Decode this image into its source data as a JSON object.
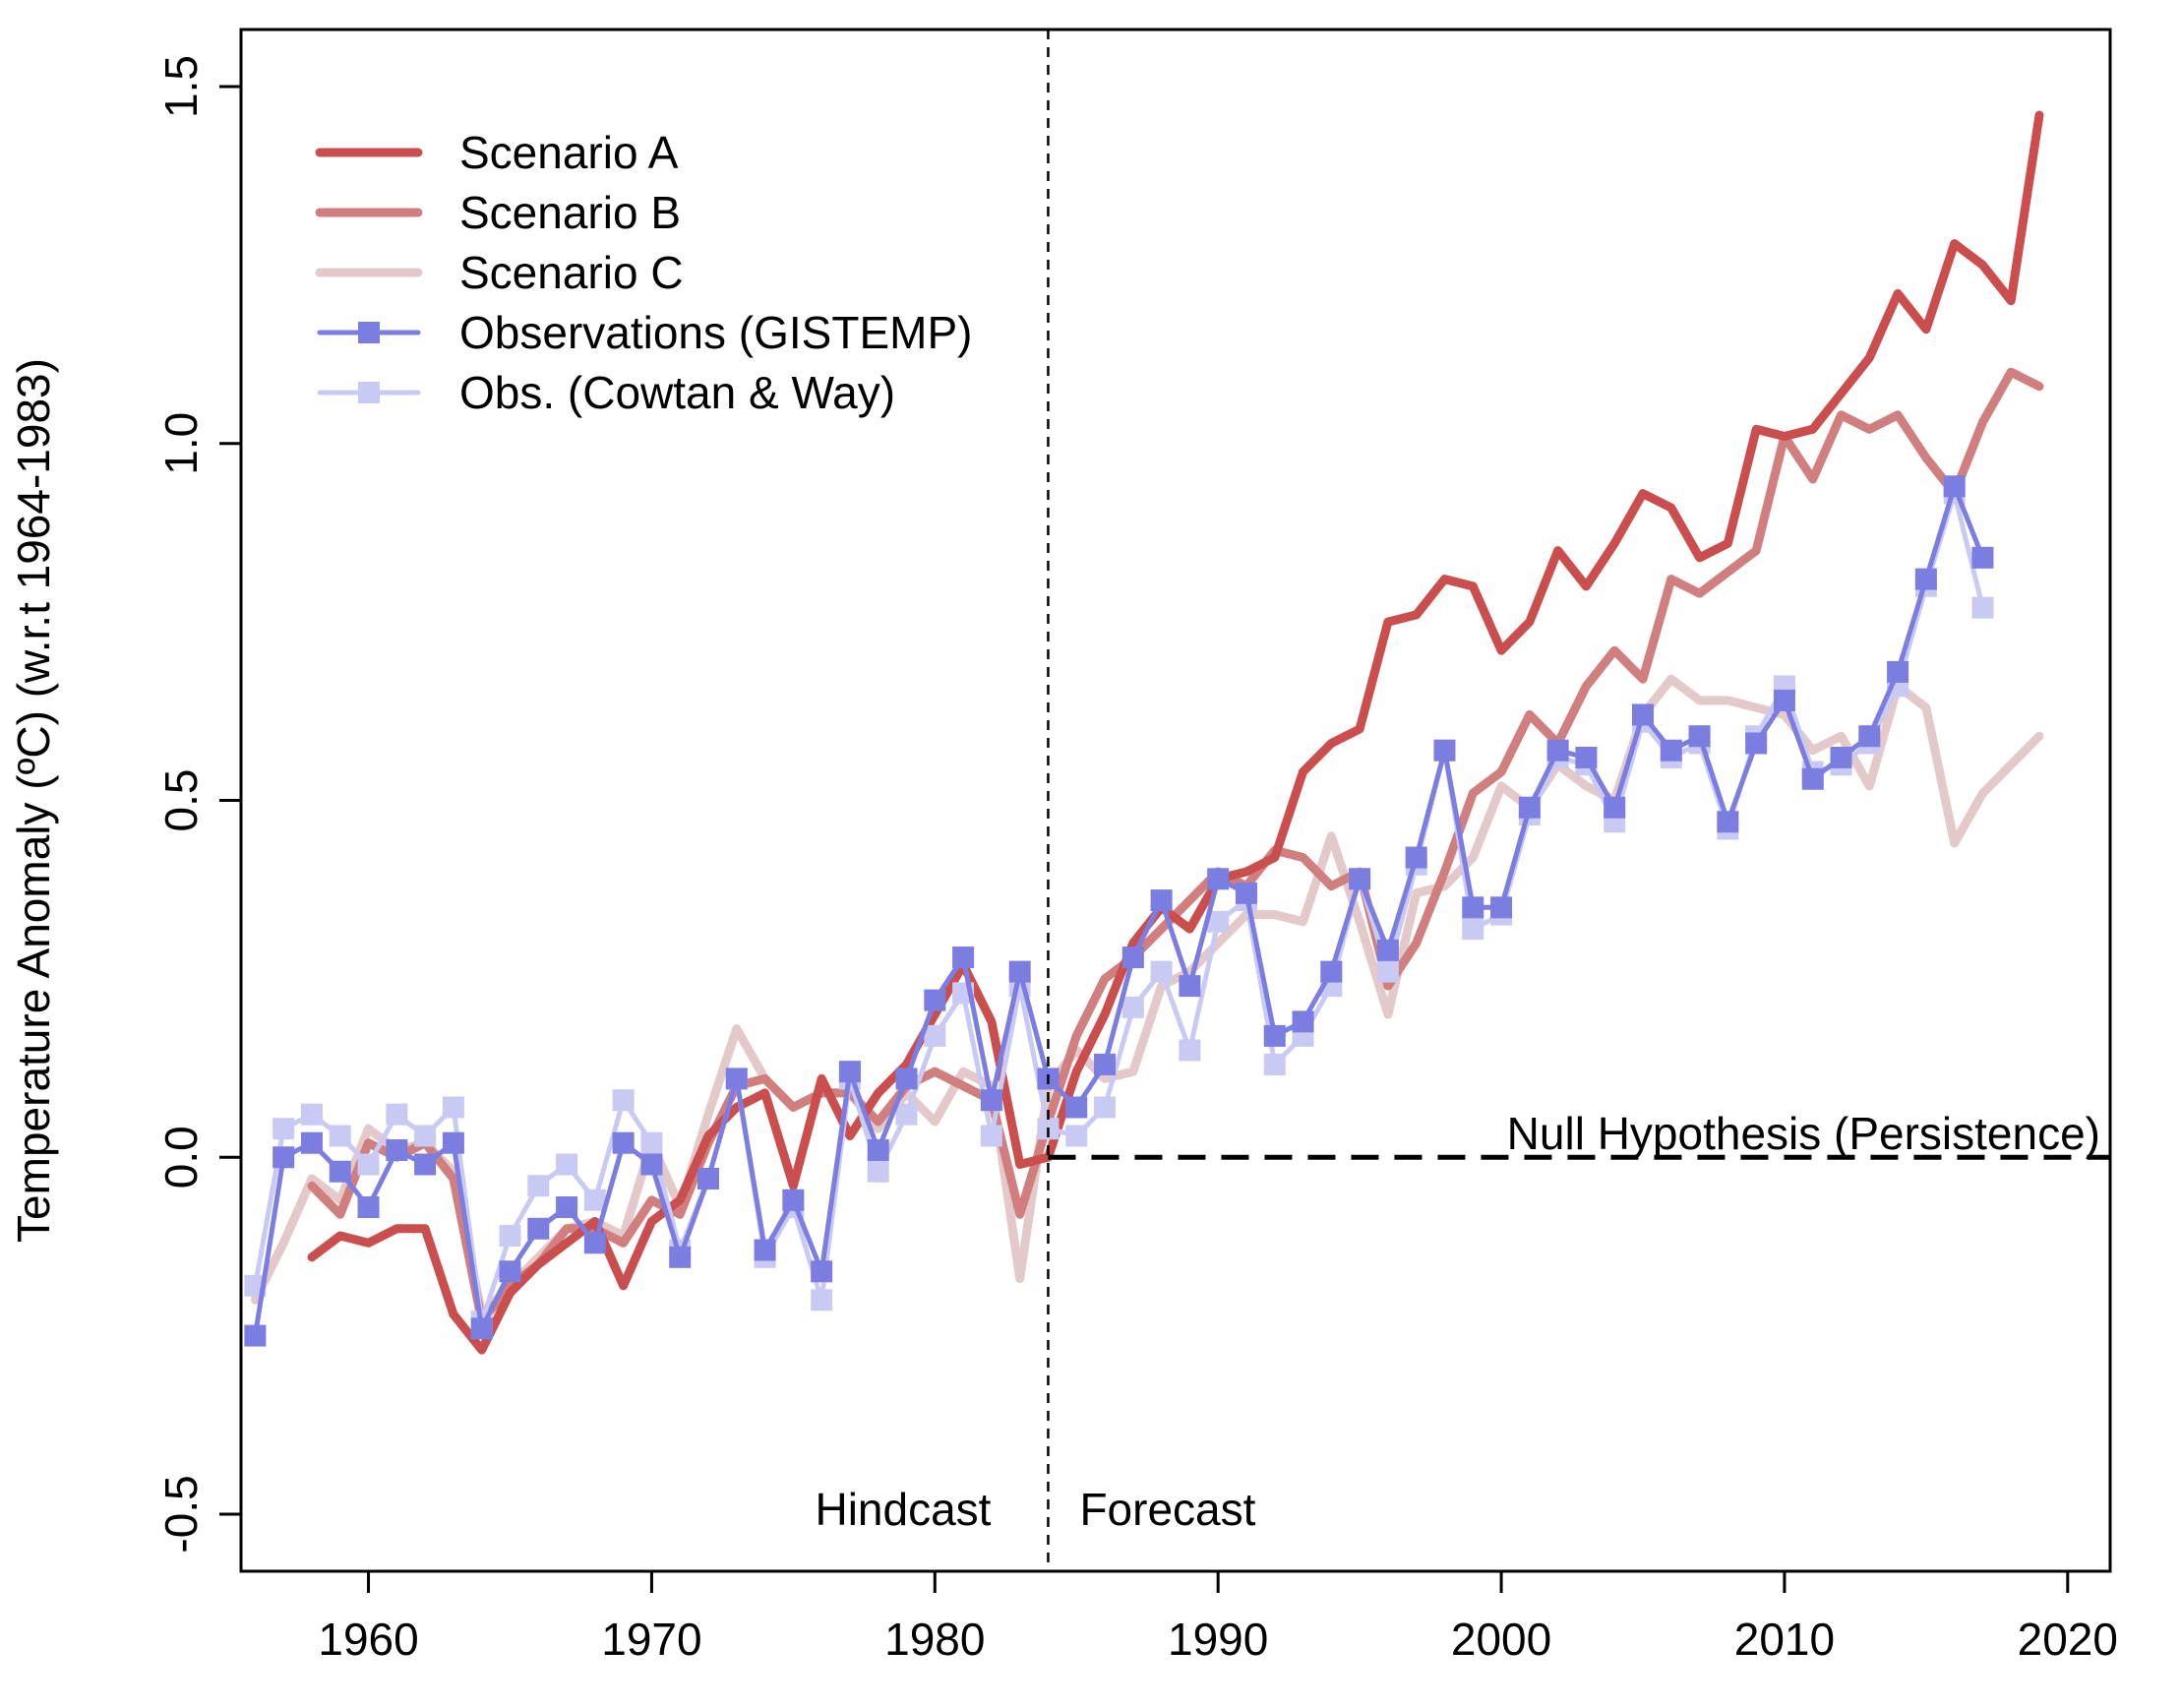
{
  "chart_data": {
    "type": "line",
    "title": "",
    "xlabel": "",
    "ylabel": "Temperature Anomaly (ºC) (w.r.t 1964-1983)",
    "xlim": [
      1955.5,
      2021.5
    ],
    "ylim": [
      -0.58,
      1.58
    ],
    "xticks": [
      1960,
      1970,
      1980,
      1990,
      2000,
      2010,
      2020
    ],
    "yticks": [
      -0.5,
      0.0,
      0.5,
      1.0,
      1.5
    ],
    "xtick_labels": [
      "1960",
      "1970",
      "1980",
      "1990",
      "2000",
      "2010",
      "2020"
    ],
    "ytick_labels": [
      "-0.5",
      "0.0",
      "0.5",
      "1.0",
      "1.5"
    ],
    "grid": false,
    "legend_position": "top-left",
    "split_year": 1984,
    "annotations": {
      "hindcast": "Hindcast",
      "forecast": "Forecast",
      "null_hypothesis": "Null Hypothesis (Persistence)"
    },
    "null_hypothesis": {
      "x_start": 1984,
      "x_end": 2021.5,
      "y": 0.0
    },
    "series": [
      {
        "name": "Scenario A",
        "color": "#cb4e4e",
        "style": "line",
        "x": [
          1958,
          1959,
          1960,
          1961,
          1962,
          1963,
          1964,
          1965,
          1966,
          1967,
          1968,
          1969,
          1970,
          1971,
          1972,
          1973,
          1974,
          1975,
          1976,
          1977,
          1978,
          1979,
          1980,
          1981,
          1982,
          1983,
          1984,
          1985,
          1986,
          1987,
          1988,
          1989,
          1990,
          1991,
          1992,
          1993,
          1994,
          1995,
          1996,
          1997,
          1998,
          1999,
          2000,
          2001,
          2002,
          2003,
          2004,
          2005,
          2006,
          2007,
          2008,
          2009,
          2010,
          2011,
          2012,
          2013,
          2014,
          2015,
          2016,
          2017,
          2018,
          2019
        ],
        "y": [
          -0.14,
          -0.11,
          -0.12,
          -0.1,
          -0.1,
          -0.22,
          -0.27,
          -0.19,
          -0.15,
          -0.12,
          -0.09,
          -0.18,
          -0.09,
          -0.06,
          0.03,
          0.07,
          0.09,
          -0.04,
          0.11,
          0.03,
          0.09,
          0.13,
          0.2,
          0.27,
          0.19,
          -0.01,
          0.0,
          0.12,
          0.2,
          0.3,
          0.35,
          0.32,
          0.39,
          0.4,
          0.42,
          0.54,
          0.58,
          0.6,
          0.75,
          0.76,
          0.81,
          0.8,
          0.71,
          0.75,
          0.85,
          0.8,
          0.86,
          0.93,
          0.91,
          0.84,
          0.86,
          1.02,
          1.01,
          1.02,
          1.07,
          1.12,
          1.21,
          1.16,
          1.28,
          1.25,
          1.2,
          1.46
        ]
      },
      {
        "name": "Scenario B",
        "color": "#d17e7e",
        "style": "line",
        "x": [
          1958,
          1959,
          1960,
          1961,
          1962,
          1963,
          1964,
          1965,
          1966,
          1967,
          1968,
          1969,
          1970,
          1971,
          1972,
          1973,
          1974,
          1975,
          1976,
          1977,
          1978,
          1979,
          1980,
          1981,
          1982,
          1983,
          1984,
          1985,
          1986,
          1987,
          1988,
          1989,
          1990,
          1991,
          1992,
          1993,
          1994,
          1995,
          1996,
          1997,
          1998,
          1999,
          2000,
          2001,
          2002,
          2003,
          2004,
          2005,
          2006,
          2007,
          2008,
          2009,
          2010,
          2011,
          2012,
          2013,
          2014,
          2015,
          2016,
          2017,
          2018,
          2019
        ],
        "y": [
          -0.04,
          -0.08,
          0.02,
          0.0,
          0.02,
          -0.03,
          -0.23,
          -0.18,
          -0.15,
          -0.1,
          -0.1,
          -0.12,
          -0.06,
          -0.08,
          0.02,
          0.1,
          0.11,
          0.07,
          0.09,
          0.09,
          0.05,
          0.1,
          0.12,
          0.1,
          0.08,
          -0.08,
          0.05,
          0.17,
          0.25,
          0.28,
          0.32,
          0.36,
          0.4,
          0.38,
          0.43,
          0.42,
          0.38,
          0.4,
          0.24,
          0.3,
          0.4,
          0.51,
          0.54,
          0.62,
          0.58,
          0.66,
          0.71,
          0.67,
          0.81,
          0.79,
          0.82,
          0.85,
          1.01,
          0.95,
          1.04,
          1.02,
          1.04,
          0.98,
          0.93,
          1.03,
          1.1,
          1.08
        ]
      },
      {
        "name": "Scenario C",
        "color": "#e3c9c9",
        "style": "line",
        "x": [
          1956,
          1957,
          1958,
          1959,
          1960,
          1961,
          1962,
          1963,
          1964,
          1965,
          1966,
          1967,
          1968,
          1969,
          1970,
          1971,
          1972,
          1973,
          1974,
          1975,
          1976,
          1977,
          1978,
          1979,
          1980,
          1981,
          1982,
          1983,
          1984,
          1985,
          1986,
          1987,
          1988,
          1989,
          1990,
          1991,
          1992,
          1993,
          1994,
          1995,
          1996,
          1997,
          1998,
          1999,
          2000,
          2001,
          2002,
          2003,
          2004,
          2005,
          2006,
          2007,
          2008,
          2009,
          2010,
          2011,
          2012,
          2013,
          2014,
          2015,
          2016,
          2017,
          2018,
          2019
        ],
        "y": [
          -0.2,
          -0.12,
          -0.03,
          -0.06,
          0.04,
          0.01,
          0.02,
          -0.02,
          -0.22,
          -0.18,
          -0.14,
          -0.1,
          -0.09,
          -0.11,
          0.02,
          -0.07,
          0.06,
          0.18,
          0.11,
          0.07,
          0.09,
          0.09,
          0.04,
          0.09,
          0.05,
          0.12,
          0.1,
          -0.17,
          0.1,
          0.15,
          0.11,
          0.12,
          0.24,
          0.26,
          0.3,
          0.34,
          0.34,
          0.33,
          0.45,
          0.33,
          0.2,
          0.37,
          0.38,
          0.42,
          0.52,
          0.49,
          0.55,
          0.52,
          0.5,
          0.62,
          0.67,
          0.64,
          0.64,
          0.63,
          0.62,
          0.57,
          0.59,
          0.52,
          0.66,
          0.63,
          0.44,
          0.51,
          0.55,
          0.59
        ]
      },
      {
        "name": "Observations (GISTEMP)",
        "color": "#7b7ee0",
        "style": "line-square",
        "x": [
          1956,
          1957,
          1958,
          1959,
          1960,
          1961,
          1962,
          1963,
          1964,
          1965,
          1966,
          1967,
          1968,
          1969,
          1970,
          1971,
          1972,
          1973,
          1974,
          1975,
          1976,
          1977,
          1978,
          1979,
          1980,
          1981,
          1982,
          1983,
          1984,
          1985,
          1986,
          1987,
          1988,
          1989,
          1990,
          1991,
          1992,
          1993,
          1994,
          1995,
          1996,
          1997,
          1998,
          1999,
          2000,
          2001,
          2002,
          2003,
          2004,
          2005,
          2006,
          2007,
          2008,
          2009,
          2010,
          2011,
          2012,
          2013,
          2014,
          2015,
          2016,
          2017
        ],
        "y": [
          -0.25,
          0.0,
          0.02,
          -0.02,
          -0.07,
          0.01,
          -0.01,
          0.02,
          -0.24,
          -0.16,
          -0.1,
          -0.07,
          -0.12,
          0.02,
          -0.01,
          -0.14,
          -0.03,
          0.11,
          -0.13,
          -0.06,
          -0.16,
          0.12,
          0.01,
          0.11,
          0.22,
          0.28,
          0.08,
          0.26,
          0.11,
          0.07,
          0.13,
          0.28,
          0.36,
          0.24,
          0.39,
          0.37,
          0.17,
          0.19,
          0.26,
          0.39,
          0.29,
          0.42,
          0.57,
          0.35,
          0.35,
          0.49,
          0.57,
          0.56,
          0.49,
          0.62,
          0.57,
          0.59,
          0.47,
          0.58,
          0.64,
          0.53,
          0.56,
          0.59,
          0.68,
          0.81,
          0.94,
          0.84
        ]
      },
      {
        "name": "Obs. (Cowtan & Way)",
        "color": "#c9caf4",
        "style": "line-square",
        "x": [
          1956,
          1957,
          1958,
          1959,
          1960,
          1961,
          1962,
          1963,
          1964,
          1965,
          1966,
          1967,
          1968,
          1969,
          1970,
          1971,
          1972,
          1973,
          1974,
          1975,
          1976,
          1977,
          1978,
          1979,
          1980,
          1981,
          1982,
          1983,
          1984,
          1985,
          1986,
          1987,
          1988,
          1989,
          1990,
          1991,
          1992,
          1993,
          1994,
          1995,
          1996,
          1997,
          1998,
          1999,
          2000,
          2001,
          2002,
          2003,
          2004,
          2005,
          2006,
          2007,
          2008,
          2009,
          2010,
          2011,
          2012,
          2013,
          2014,
          2015,
          2016,
          2017
        ],
        "y": [
          -0.18,
          0.04,
          0.06,
          0.03,
          -0.01,
          0.06,
          0.03,
          0.07,
          -0.23,
          -0.11,
          -0.04,
          -0.01,
          -0.06,
          0.08,
          0.02,
          -0.13,
          -0.03,
          0.11,
          -0.14,
          -0.07,
          -0.2,
          0.11,
          -0.02,
          0.06,
          0.17,
          0.23,
          0.03,
          0.24,
          0.04,
          0.03,
          0.07,
          0.21,
          0.26,
          0.15,
          0.33,
          0.36,
          0.13,
          0.17,
          0.24,
          0.39,
          0.26,
          0.41,
          0.57,
          0.32,
          0.34,
          0.48,
          0.56,
          0.55,
          0.47,
          0.61,
          0.56,
          0.58,
          0.46,
          0.59,
          0.66,
          0.54,
          0.55,
          0.58,
          0.66,
          0.8,
          0.93,
          0.77
        ]
      }
    ]
  }
}
